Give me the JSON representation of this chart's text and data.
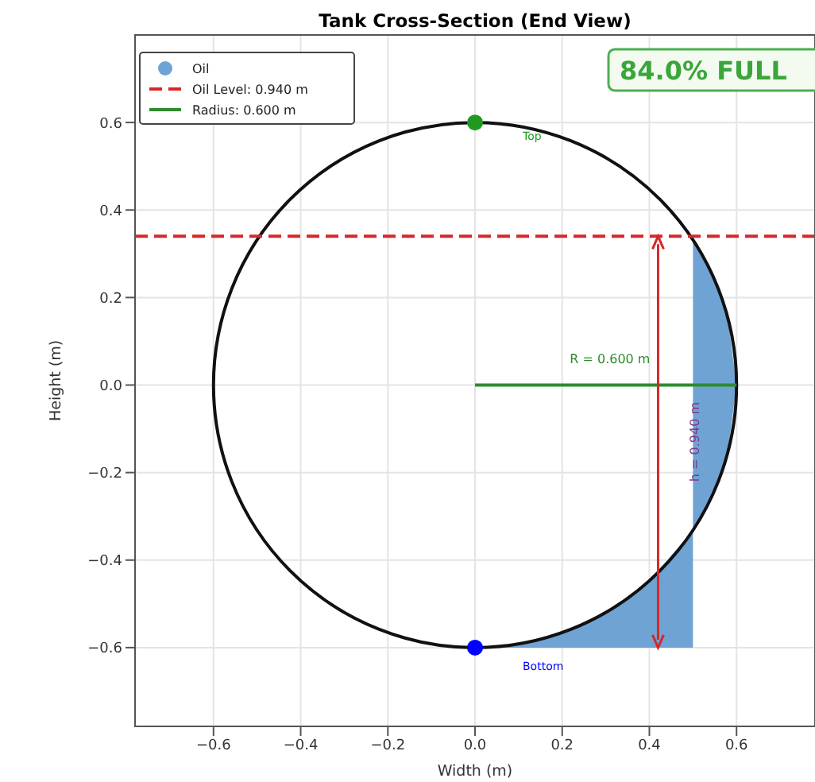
{
  "chart_data": {
    "type": "line",
    "title": "Tank Cross-Section (End View)",
    "xlabel": "Width (m)",
    "ylabel": "Height (m)",
    "xlim": [
      -0.78,
      0.78
    ],
    "ylim": [
      -0.78,
      0.8
    ],
    "xticks": [
      -0.6,
      -0.4,
      -0.2,
      {
        "value": 0,
        "label": "0.0"
      },
      0.2,
      0.4,
      0.6
    ],
    "yticks": [
      -0.6,
      -0.4,
      -0.2,
      {
        "value": 0,
        "label": "0.0"
      },
      0.2,
      0.4,
      0.6
    ],
    "grid": true,
    "legend": "top left",
    "series": [
      {
        "type": "area",
        "name": "Oil",
        "color": "#6fa3d3",
        "x": [
          0,
          0.5,
          0.5,
          0.55,
          0.58,
          0.6,
          0.58,
          0.55,
          0.5,
          0.4,
          0.3,
          0.2,
          0.1,
          0
        ],
        "values": [
          -0.6,
          -0.6,
          0.332,
          0.24,
          0.154,
          0,
          -0.154,
          -0.24,
          -0.332,
          -0.447,
          -0.52,
          -0.566,
          -0.592,
          -0.6
        ]
      },
      {
        "name": "Oil Level: 0.940 m",
        "color": "#d62728",
        "line_style": "dashed",
        "x": [
          -0.78,
          0.78
        ],
        "values": [
          0.34,
          0.34
        ]
      },
      {
        "name": "Radius: 0.600 m",
        "color": "#2e8b2e",
        "x": [
          0,
          0.6
        ],
        "values": [
          0,
          0
        ]
      },
      {
        "type": "scatter",
        "name": "Top",
        "color": "#1f9a1f",
        "marker": "circle",
        "x": [
          0
        ],
        "values": [
          0.6
        ]
      },
      {
        "type": "scatter",
        "name": "Bottom",
        "color": "#0000ff",
        "marker": "circle",
        "x": [
          0
        ],
        "values": [
          -0.6
        ]
      }
    ],
    "annotations": [
      "84.0% FULL",
      "R = 0.600 m",
      "h = 0.940 m"
    ]
  }
}
